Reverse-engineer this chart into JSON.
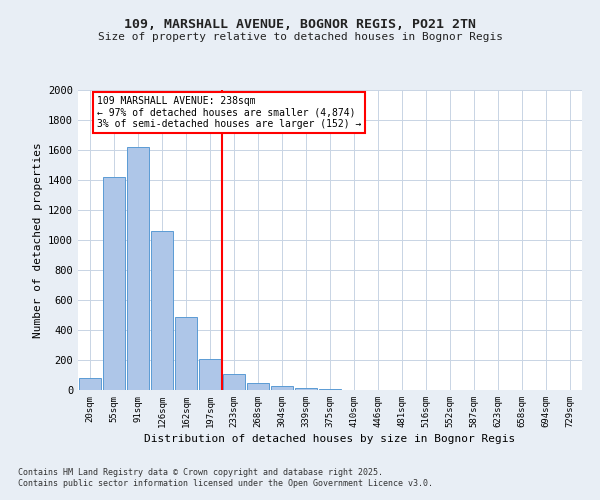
{
  "title1": "109, MARSHALL AVENUE, BOGNOR REGIS, PO21 2TN",
  "title2": "Size of property relative to detached houses in Bognor Regis",
  "xlabel": "Distribution of detached houses by size in Bognor Regis",
  "ylabel": "Number of detached properties",
  "categories": [
    "20sqm",
    "55sqm",
    "91sqm",
    "126sqm",
    "162sqm",
    "197sqm",
    "233sqm",
    "268sqm",
    "304sqm",
    "339sqm",
    "375sqm",
    "410sqm",
    "446sqm",
    "481sqm",
    "516sqm",
    "552sqm",
    "587sqm",
    "623sqm",
    "658sqm",
    "694sqm",
    "729sqm"
  ],
  "values": [
    80,
    1420,
    1620,
    1060,
    490,
    205,
    105,
    45,
    25,
    15,
    5,
    0,
    0,
    0,
    0,
    0,
    0,
    0,
    0,
    0,
    0
  ],
  "bar_color": "#aec6e8",
  "bar_edge_color": "#5b9bd5",
  "marker_bin_index": 6,
  "annotation_line1": "109 MARSHALL AVENUE: 238sqm",
  "annotation_line2": "← 97% of detached houses are smaller (4,874)",
  "annotation_line3": "3% of semi-detached houses are larger (152) →",
  "marker_color": "red",
  "ylim": [
    0,
    2000
  ],
  "yticks": [
    0,
    200,
    400,
    600,
    800,
    1000,
    1200,
    1400,
    1600,
    1800,
    2000
  ],
  "footer1": "Contains HM Land Registry data © Crown copyright and database right 2025.",
  "footer2": "Contains public sector information licensed under the Open Government Licence v3.0.",
  "bg_color": "#e8eef5",
  "plot_bg_color": "#ffffff",
  "grid_color": "#c8d4e4"
}
